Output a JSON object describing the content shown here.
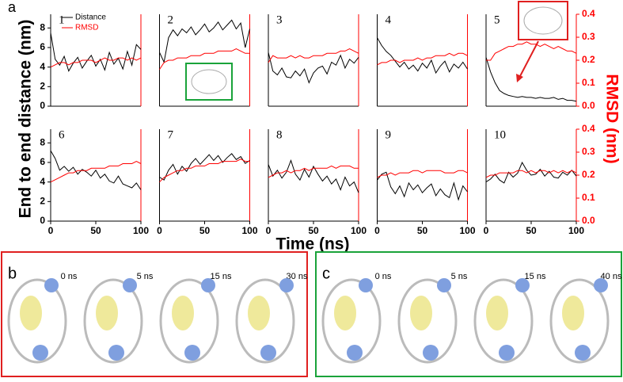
{
  "figure_label": "a",
  "y_label": "End to end distance (nm)",
  "y2_label": "RMSD (nm)",
  "x_label": "Time (ns)",
  "chart_data": [
    {
      "type": "line",
      "title": "1",
      "x": [
        0,
        5,
        10,
        15,
        20,
        25,
        30,
        35,
        40,
        45,
        50,
        55,
        60,
        65,
        70,
        75,
        80,
        85,
        90,
        95,
        100
      ],
      "xlim": [
        0,
        100
      ],
      "ylim": [
        0,
        9.4
      ],
      "yticks": [
        0,
        2,
        4,
        6,
        8
      ],
      "y2lim": [
        0,
        0.4
      ],
      "legend": "upper left",
      "series": [
        {
          "name": "Distance",
          "color": "#000000",
          "values": [
            7.5,
            4.8,
            4.2,
            5.1,
            3.6,
            4.4,
            5.0,
            3.9,
            4.6,
            5.2,
            4.1,
            4.8,
            3.7,
            5.5,
            4.3,
            4.9,
            3.8,
            5.6,
            4.2,
            6.3,
            5.8
          ]
        },
        {
          "name": "RMSD",
          "color": "#ff0000",
          "axis": "y2",
          "values": [
            0.17,
            0.18,
            0.19,
            0.19,
            0.18,
            0.19,
            0.19,
            0.2,
            0.2,
            0.2,
            0.19,
            0.2,
            0.21,
            0.2,
            0.2,
            0.21,
            0.21,
            0.2,
            0.21,
            0.2,
            0.21
          ]
        }
      ]
    },
    {
      "type": "line",
      "title": "2",
      "x": [
        0,
        5,
        10,
        15,
        20,
        25,
        30,
        35,
        40,
        45,
        50,
        55,
        60,
        65,
        70,
        75,
        80,
        85,
        90,
        95,
        100
      ],
      "xlim": [
        0,
        100
      ],
      "ylim": [
        0,
        9.4
      ],
      "y2lim": [
        0,
        0.4
      ],
      "series": [
        {
          "color": "#000000",
          "values": [
            5.5,
            4.5,
            7.0,
            7.8,
            7.2,
            7.9,
            7.5,
            8.1,
            7.3,
            7.8,
            8.4,
            7.6,
            8.0,
            8.6,
            7.8,
            8.3,
            8.8,
            7.9,
            8.5,
            6.0,
            7.9
          ]
        },
        {
          "color": "#ff0000",
          "axis": "y2",
          "values": [
            0.16,
            0.19,
            0.2,
            0.2,
            0.21,
            0.21,
            0.21,
            0.22,
            0.22,
            0.22,
            0.23,
            0.23,
            0.23,
            0.24,
            0.24,
            0.24,
            0.24,
            0.25,
            0.24,
            0.23,
            0.23
          ]
        }
      ]
    },
    {
      "type": "line",
      "title": "3",
      "x": [
        0,
        5,
        10,
        15,
        20,
        25,
        30,
        35,
        40,
        45,
        50,
        55,
        60,
        65,
        70,
        75,
        80,
        85,
        90,
        95,
        100
      ],
      "xlim": [
        0,
        100
      ],
      "ylim": [
        0,
        9.4
      ],
      "y2lim": [
        0,
        0.4
      ],
      "series": [
        {
          "color": "#000000",
          "values": [
            5.5,
            3.6,
            3.2,
            3.9,
            3.0,
            2.9,
            3.6,
            3.1,
            3.8,
            2.4,
            3.4,
            3.9,
            4.1,
            3.3,
            4.5,
            4.2,
            5.2,
            3.9,
            4.8,
            4.4,
            5.0
          ]
        },
        {
          "color": "#ff0000",
          "axis": "y2",
          "values": [
            0.19,
            0.22,
            0.21,
            0.21,
            0.21,
            0.22,
            0.21,
            0.22,
            0.21,
            0.21,
            0.22,
            0.22,
            0.22,
            0.23,
            0.23,
            0.23,
            0.24,
            0.24,
            0.25,
            0.24,
            0.23
          ]
        }
      ]
    },
    {
      "type": "line",
      "title": "4",
      "x": [
        0,
        5,
        10,
        15,
        20,
        25,
        30,
        35,
        40,
        45,
        50,
        55,
        60,
        65,
        70,
        75,
        80,
        85,
        90,
        95,
        100
      ],
      "xlim": [
        0,
        100
      ],
      "ylim": [
        0,
        9.4
      ],
      "y2lim": [
        0,
        0.4
      ],
      "series": [
        {
          "color": "#000000",
          "values": [
            7.0,
            6.2,
            5.6,
            5.2,
            4.6,
            4.0,
            4.5,
            3.8,
            4.2,
            3.6,
            4.4,
            3.9,
            4.7,
            3.4,
            4.1,
            4.6,
            3.5,
            4.3,
            3.9,
            4.5,
            3.8
          ]
        },
        {
          "color": "#ff0000",
          "axis": "y2",
          "values": [
            0.18,
            0.19,
            0.19,
            0.2,
            0.2,
            0.19,
            0.2,
            0.2,
            0.2,
            0.21,
            0.2,
            0.21,
            0.21,
            0.22,
            0.22,
            0.22,
            0.23,
            0.22,
            0.23,
            0.23,
            0.22
          ]
        }
      ]
    },
    {
      "type": "line",
      "title": "5",
      "x": [
        0,
        5,
        10,
        15,
        20,
        25,
        30,
        35,
        40,
        45,
        50,
        55,
        60,
        65,
        70,
        75,
        80,
        85,
        90,
        95,
        100
      ],
      "xlim": [
        0,
        100
      ],
      "ylim": [
        0,
        9.4
      ],
      "y2lim": [
        0,
        0.4
      ],
      "y2ticks": [
        {
          "value": 0,
          "label": "0.0"
        },
        0.1,
        0.2,
        0.3,
        0.4
      ],
      "series": [
        {
          "color": "#000000",
          "values": [
            5.0,
            3.5,
            2.4,
            1.6,
            1.3,
            1.1,
            1.0,
            0.9,
            1.0,
            0.9,
            0.9,
            0.8,
            0.9,
            0.8,
            0.8,
            0.9,
            0.7,
            0.8,
            0.6,
            0.6,
            0.5
          ]
        },
        {
          "color": "#ff0000",
          "axis": "y2",
          "values": [
            0.2,
            0.2,
            0.23,
            0.24,
            0.25,
            0.26,
            0.26,
            0.27,
            0.27,
            0.28,
            0.27,
            0.27,
            0.26,
            0.27,
            0.26,
            0.25,
            0.26,
            0.25,
            0.24,
            0.24,
            0.23
          ]
        }
      ]
    },
    {
      "type": "line",
      "title": "6",
      "x": [
        0,
        5,
        10,
        15,
        20,
        25,
        30,
        35,
        40,
        45,
        50,
        55,
        60,
        65,
        70,
        75,
        80,
        85,
        90,
        95,
        100
      ],
      "xlim": [
        0,
        100
      ],
      "xticks": [
        0,
        50,
        100
      ],
      "ylim": [
        0,
        9.4
      ],
      "yticks": [
        0,
        2,
        4,
        6,
        8
      ],
      "y2lim": [
        0,
        0.4
      ],
      "series": [
        {
          "color": "#000000",
          "values": [
            7.2,
            6.4,
            5.2,
            5.6,
            5.1,
            5.5,
            4.8,
            5.3,
            5.0,
            4.6,
            5.2,
            4.4,
            4.8,
            4.1,
            3.9,
            4.6,
            3.8,
            3.6,
            3.4,
            3.9,
            3.2
          ]
        },
        {
          "color": "#ff0000",
          "axis": "y2",
          "values": [
            0.17,
            0.18,
            0.19,
            0.2,
            0.21,
            0.21,
            0.22,
            0.22,
            0.22,
            0.23,
            0.23,
            0.23,
            0.23,
            0.24,
            0.24,
            0.24,
            0.25,
            0.25,
            0.25,
            0.26,
            0.25
          ]
        }
      ]
    },
    {
      "type": "line",
      "title": "7",
      "x": [
        0,
        5,
        10,
        15,
        20,
        25,
        30,
        35,
        40,
        45,
        50,
        55,
        60,
        65,
        70,
        75,
        80,
        85,
        90,
        95,
        100
      ],
      "xlim": [
        0,
        100
      ],
      "xticks": [
        0,
        50,
        100
      ],
      "ylim": [
        0,
        9.4
      ],
      "y2lim": [
        0,
        0.4
      ],
      "series": [
        {
          "color": "#000000",
          "values": [
            4.5,
            4.2,
            5.2,
            5.8,
            4.8,
            5.6,
            5.1,
            5.9,
            6.4,
            5.8,
            6.3,
            6.8,
            6.2,
            6.7,
            6.0,
            6.5,
            6.9,
            6.3,
            6.6,
            5.9,
            6.2
          ]
        },
        {
          "color": "#ff0000",
          "axis": "y2",
          "values": [
            0.17,
            0.19,
            0.2,
            0.21,
            0.22,
            0.22,
            0.23,
            0.23,
            0.24,
            0.24,
            0.24,
            0.25,
            0.25,
            0.25,
            0.26,
            0.26,
            0.26,
            0.26,
            0.27,
            0.26,
            0.26
          ]
        }
      ]
    },
    {
      "type": "line",
      "title": "8",
      "x": [
        0,
        5,
        10,
        15,
        20,
        25,
        30,
        35,
        40,
        45,
        50,
        55,
        60,
        65,
        70,
        75,
        80,
        85,
        90,
        95,
        100
      ],
      "xlim": [
        0,
        100
      ],
      "xticks": [
        0,
        50,
        100
      ],
      "ylim": [
        0,
        9.4
      ],
      "y2lim": [
        0,
        0.4
      ],
      "series": [
        {
          "color": "#000000",
          "values": [
            5.8,
            4.6,
            5.2,
            4.4,
            5.0,
            6.2,
            4.8,
            4.2,
            5.3,
            4.5,
            5.6,
            4.8,
            4.1,
            4.6,
            3.8,
            4.3,
            3.2,
            4.5,
            3.6,
            4.0,
            2.9
          ]
        },
        {
          "color": "#ff0000",
          "axis": "y2",
          "values": [
            0.19,
            0.2,
            0.21,
            0.21,
            0.22,
            0.21,
            0.22,
            0.22,
            0.23,
            0.22,
            0.23,
            0.23,
            0.23,
            0.23,
            0.24,
            0.23,
            0.24,
            0.24,
            0.24,
            0.23,
            0.23
          ]
        }
      ]
    },
    {
      "type": "line",
      "title": "9",
      "x": [
        0,
        5,
        10,
        15,
        20,
        25,
        30,
        35,
        40,
        45,
        50,
        55,
        60,
        65,
        70,
        75,
        80,
        85,
        90,
        95,
        100
      ],
      "xlim": [
        0,
        100
      ],
      "xticks": [
        0,
        50,
        100
      ],
      "ylim": [
        0,
        9.4
      ],
      "y2lim": [
        0,
        0.4
      ],
      "series": [
        {
          "color": "#000000",
          "values": [
            4.2,
            4.8,
            5.0,
            3.5,
            2.8,
            3.6,
            2.5,
            3.9,
            3.2,
            3.7,
            2.9,
            3.4,
            3.8,
            2.6,
            3.3,
            2.7,
            2.4,
            3.9,
            2.2,
            3.6,
            3.0
          ]
        },
        {
          "color": "#ff0000",
          "axis": "y2",
          "values": [
            0.19,
            0.2,
            0.2,
            0.21,
            0.2,
            0.21,
            0.21,
            0.21,
            0.22,
            0.22,
            0.21,
            0.22,
            0.22,
            0.22,
            0.22,
            0.21,
            0.21,
            0.21,
            0.22,
            0.22,
            0.21
          ]
        }
      ]
    },
    {
      "type": "line",
      "title": "10",
      "x": [
        0,
        5,
        10,
        15,
        20,
        25,
        30,
        35,
        40,
        45,
        50,
        55,
        60,
        65,
        70,
        75,
        80,
        85,
        90,
        95,
        100
      ],
      "xlim": [
        0,
        100
      ],
      "xticks": [
        0,
        50,
        100
      ],
      "ylim": [
        0,
        9.4
      ],
      "y2lim": [
        0,
        0.4
      ],
      "y2ticks": [
        {
          "value": 0,
          "label": "0.0"
        },
        0.1,
        0.2,
        0.3,
        0.4
      ],
      "series": [
        {
          "color": "#000000",
          "values": [
            4.0,
            4.3,
            4.8,
            4.2,
            3.9,
            5.0,
            4.5,
            4.9,
            6.0,
            5.2,
            4.7,
            4.8,
            5.3,
            4.6,
            5.1,
            4.5,
            4.4,
            5.0,
            4.7,
            5.2,
            4.6
          ]
        },
        {
          "color": "#ff0000",
          "axis": "y2",
          "values": [
            0.19,
            0.2,
            0.2,
            0.21,
            0.21,
            0.21,
            0.21,
            0.22,
            0.22,
            0.21,
            0.22,
            0.21,
            0.22,
            0.22,
            0.21,
            0.22,
            0.21,
            0.22,
            0.21,
            0.22,
            0.21
          ]
        }
      ]
    }
  ],
  "structures": [
    {
      "label": "b",
      "times": [
        "0 ns",
        "5 ns",
        "15 ns",
        "30 ns"
      ]
    },
    {
      "label": "c",
      "times": [
        "0 ns",
        "5 ns",
        "15 ns",
        "40 ns"
      ]
    }
  ]
}
